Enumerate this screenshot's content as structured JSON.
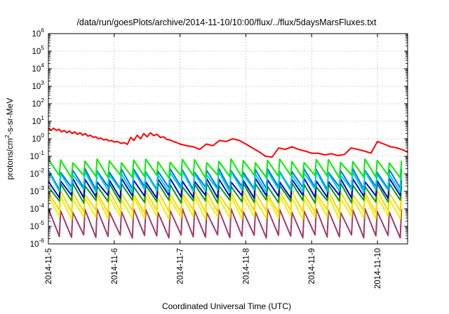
{
  "chart_data": {
    "type": "line",
    "title": "/data/run/goesPlots/archive/2014-11-10/10:00/flux/../flux/5daysMarsFluxes.txt",
    "xlabel": "Coordinated Universal Time (UTC)",
    "ylabel": {
      "pre": "protons/cm",
      "sup": "2",
      "post": "-s-sr-MeV"
    },
    "x_unit": "days",
    "xlim": [
      "2014-11-05T00:00",
      "2014-11-10T11:00"
    ],
    "x_ticks": [
      "2014-11-5",
      "2014-11-6",
      "2014-11-7",
      "2014-11-8",
      "2014-11-9",
      "2014-11-10"
    ],
    "yscale": "log",
    "ylim": [
      1e-06,
      1000000.0
    ],
    "y_ticks": [
      {
        "base": "10",
        "exp": "-6"
      },
      {
        "base": "10",
        "exp": "-5"
      },
      {
        "base": "10",
        "exp": "-4"
      },
      {
        "base": "10",
        "exp": "-3"
      },
      {
        "base": "10",
        "exp": "-2"
      },
      {
        "base": "10",
        "exp": "-1"
      },
      {
        "base": "10",
        "exp": "0"
      },
      {
        "base": "10",
        "exp": "1"
      },
      {
        "base": "10",
        "exp": "2"
      },
      {
        "base": "10",
        "exp": "3"
      },
      {
        "base": "10",
        "exp": "4"
      },
      {
        "base": "10",
        "exp": "5"
      },
      {
        "base": "10",
        "exp": "6"
      }
    ],
    "grid": true,
    "series": [
      {
        "color": "#ff0000",
        "x": [
          0,
          0.04,
          0.08,
          0.12,
          0.16,
          0.2,
          0.24,
          0.28,
          0.32,
          0.36,
          0.4,
          0.44,
          0.48,
          0.52,
          0.56,
          0.6,
          0.64,
          0.68,
          0.72,
          0.76,
          0.8,
          0.84,
          0.88,
          0.92,
          0.96,
          1.0,
          1.05,
          1.1,
          1.15,
          1.2,
          1.25,
          1.3,
          1.35,
          1.4,
          1.45,
          1.5,
          1.55,
          1.6,
          1.65,
          1.7,
          1.75,
          1.8,
          1.85,
          1.9,
          1.95,
          2.0,
          2.1,
          2.2,
          2.3,
          2.4,
          2.5,
          2.6,
          2.7,
          2.8,
          2.9,
          3.0,
          3.1,
          3.2,
          3.3,
          3.4,
          3.5,
          3.6,
          3.7,
          3.8,
          3.9,
          4.0,
          4.1,
          4.2,
          4.3,
          4.4,
          4.5,
          4.6,
          4.7,
          4.8,
          4.9,
          5.0,
          5.1,
          5.2,
          5.3,
          5.4,
          5.46
        ],
        "y": [
          4.0,
          3.0,
          4.0,
          3.0,
          3.5,
          2.5,
          3.0,
          2.2,
          2.8,
          2.0,
          2.5,
          1.8,
          2.2,
          1.6,
          2.0,
          1.4,
          1.6,
          1.2,
          1.3,
          1.0,
          1.1,
          0.85,
          0.95,
          0.75,
          0.8,
          0.65,
          0.7,
          0.55,
          0.6,
          0.48,
          1.2,
          0.8,
          1.6,
          1.0,
          2.0,
          1.3,
          2.2,
          1.5,
          1.8,
          1.2,
          1.3,
          0.9,
          0.85,
          0.7,
          0.6,
          0.5,
          0.4,
          0.35,
          0.25,
          0.5,
          0.4,
          0.8,
          0.7,
          1.0,
          0.8,
          0.5,
          0.3,
          0.18,
          0.1,
          0.09,
          0.3,
          0.25,
          0.35,
          0.25,
          0.2,
          0.15,
          0.15,
          0.12,
          0.14,
          0.11,
          0.13,
          0.3,
          0.25,
          0.2,
          0.15,
          0.7,
          0.5,
          0.35,
          0.3,
          0.22,
          0.17
        ]
      },
      {
        "color": "#00ee00",
        "x": [],
        "y": []
      },
      {
        "color": "#00d0c8",
        "x": [],
        "y": []
      },
      {
        "color": "#0070ff",
        "x": [],
        "y": []
      },
      {
        "color": "#0000e0",
        "x": [],
        "y": []
      },
      {
        "color": "#00a000",
        "x": [],
        "y": []
      },
      {
        "color": "#ffd500",
        "x": [],
        "y": []
      },
      {
        "color": "#f0f000",
        "x": [],
        "y": []
      },
      {
        "color": "#a03a6e",
        "x": [],
        "y": []
      }
    ]
  }
}
